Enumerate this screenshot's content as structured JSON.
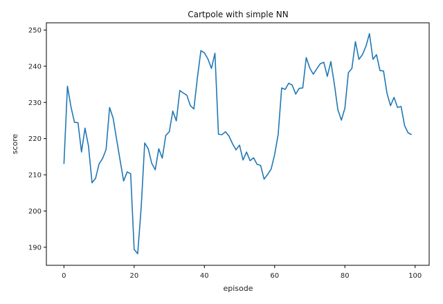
{
  "chart_data": {
    "type": "line",
    "title": "Cartpole with simple NN",
    "xlabel": "episode",
    "ylabel": "score",
    "xlim": [
      -5,
      104
    ],
    "ylim": [
      185,
      252
    ],
    "xticks": [
      0,
      20,
      40,
      60,
      80,
      100
    ],
    "yticks": [
      190,
      200,
      210,
      220,
      230,
      240,
      250
    ],
    "grid": false,
    "line_color": "#1f77b4",
    "series": [
      {
        "x": [
          0,
          1,
          2,
          3,
          4,
          5,
          6,
          7,
          8,
          9,
          10,
          11,
          12,
          13,
          14,
          15,
          16,
          17,
          18,
          19,
          20,
          21,
          22,
          23,
          24,
          25,
          26,
          27,
          28,
          29,
          30,
          31,
          32,
          33,
          34,
          35,
          36,
          37,
          38,
          39,
          40,
          41,
          42,
          43,
          44,
          45,
          46,
          47,
          48,
          49,
          50,
          51,
          52,
          53,
          54,
          55,
          56,
          57,
          58,
          59,
          60,
          61,
          62,
          63,
          64,
          65,
          66,
          67,
          68,
          69,
          70,
          71,
          72,
          73,
          74,
          75,
          76,
          77,
          78,
          79,
          80,
          81,
          82,
          83,
          84,
          85,
          86,
          87,
          88,
          89,
          90,
          91,
          92,
          93,
          94,
          95,
          96,
          97,
          98,
          99
        ],
        "values": [
          213.0,
          234.5,
          228.8,
          224.5,
          224.4,
          216.3,
          222.9,
          217.9,
          207.8,
          209.0,
          213.0,
          214.5,
          217.0,
          228.6,
          225.7,
          219.8,
          214.0,
          208.3,
          210.8,
          210.3,
          189.4,
          188.2,
          201.0,
          218.8,
          217.2,
          213.2,
          211.4,
          217.2,
          214.6,
          220.9,
          221.9,
          227.6,
          224.9,
          233.3,
          232.6,
          232.0,
          229.1,
          228.2,
          236.8,
          244.3,
          243.7,
          242.0,
          239.4,
          243.6,
          221.2,
          221.1,
          221.9,
          220.7,
          218.6,
          216.9,
          218.2,
          214.1,
          216.3,
          213.9,
          214.7,
          212.9,
          212.6,
          208.8,
          210.1,
          211.6,
          215.6,
          221.1,
          234.0,
          233.6,
          235.3,
          234.8,
          232.3,
          233.9,
          234.0,
          242.4,
          239.5,
          237.8,
          239.3,
          240.7,
          241.1,
          237.2,
          241.3,
          235.1,
          228.0,
          225.1,
          228.4,
          238.2,
          239.4,
          246.8,
          241.9,
          243.2,
          245.5,
          249.0,
          241.9,
          243.2,
          238.8,
          238.7,
          232.5,
          229.1,
          231.4,
          228.6,
          228.9,
          223.6,
          221.6,
          221.1
        ]
      }
    ]
  }
}
